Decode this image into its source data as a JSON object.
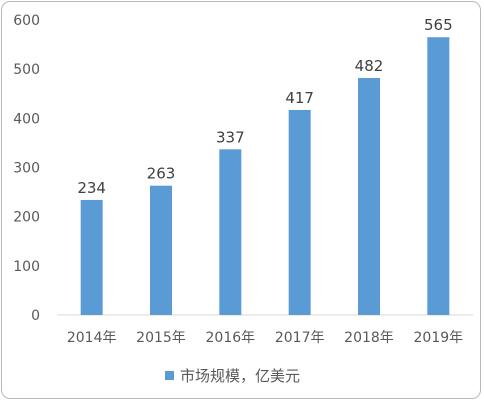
{
  "chart_data": {
    "type": "bar",
    "categories": [
      "2014年",
      "2015年",
      "2016年",
      "2017年",
      "2018年",
      "2019年"
    ],
    "series": [
      {
        "name": "市场规模，亿美元",
        "values": [
          234,
          263,
          337,
          417,
          482,
          565
        ]
      }
    ],
    "title": "",
    "xlabel": "",
    "ylabel": "",
    "ylim": [
      0,
      600
    ],
    "yticks": [
      0,
      100,
      200,
      300,
      400,
      500,
      600
    ],
    "grid": false,
    "legend_position": "bottom",
    "bar_color": "#5b9bd5",
    "data_labels": true
  }
}
